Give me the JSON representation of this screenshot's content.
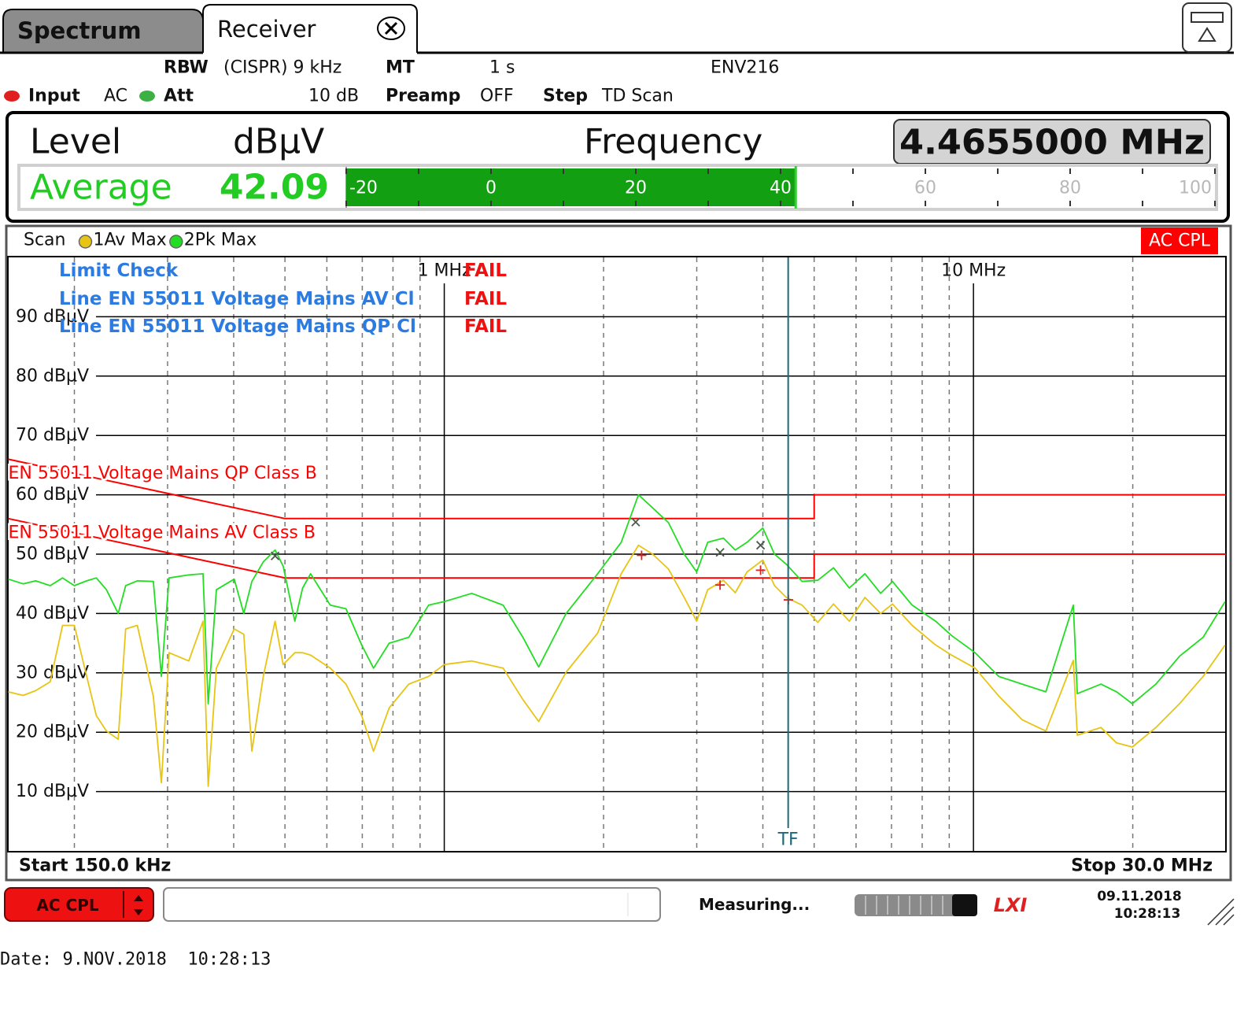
{
  "tabs": [
    "Spectrum",
    "Receiver"
  ],
  "settings": {
    "rbw_label": "RBW",
    "rbw_value": "(CISPR) 9 kHz",
    "mt_label": "MT",
    "mt_value": "1 s",
    "device": "ENV216",
    "input_label": "Input",
    "input_value": "AC",
    "att_label": "Att",
    "att_value": "10 dB",
    "preamp_label": "Preamp",
    "preamp_value": "OFF",
    "step_label": "Step",
    "step_value": "TD Scan"
  },
  "level_panel": {
    "level_label": "Level",
    "unit": "dBµV",
    "frequency_label": "Frequency",
    "frequency_value": "4.4655000 MHz",
    "detector": "Average",
    "value": 42.09,
    "meter_lim": [
      -20,
      100
    ],
    "meter_ticks": [
      -20,
      0,
      20,
      40,
      60,
      80,
      100
    ],
    "meter_minor_ticks": [
      -10,
      10,
      30,
      50,
      70,
      90
    ]
  },
  "chart_data": {
    "type": "line",
    "scan_label": "Scan",
    "coupling": "AC CPL",
    "xscale": "log",
    "grid": true,
    "xlim": [
      0.15,
      30
    ],
    "xticks": [
      {
        "value": 1,
        "label": "1 MHz"
      },
      {
        "value": 10,
        "label": "10 MHz"
      }
    ],
    "xminorticks": [
      0.2,
      0.3,
      0.4,
      0.5,
      0.6,
      0.7,
      0.8,
      0.9,
      2,
      3,
      4,
      5,
      6,
      7,
      8,
      9,
      20
    ],
    "ylim": [
      0,
      100
    ],
    "yticks": [
      {
        "value": 10,
        "label": "10 dBµV"
      },
      {
        "value": 20,
        "label": "20 dBµV"
      },
      {
        "value": 30,
        "label": "30 dBµV"
      },
      {
        "value": 40,
        "label": "40 dBµV"
      },
      {
        "value": 50,
        "label": "50 dBµV"
      },
      {
        "value": 60,
        "label": "60 dBµV"
      },
      {
        "value": 70,
        "label": "70 dBµV"
      },
      {
        "value": 80,
        "label": "80 dBµV"
      },
      {
        "value": 90,
        "label": "90 dBµV"
      }
    ],
    "start_label": "Start 150.0 kHz",
    "stop_label": "Stop 30.0 MHz",
    "limit_check": {
      "title": "Limit Check",
      "result": "FAIL",
      "lines": [
        {
          "label": "Line EN 55011 Voltage Mains AV Cl",
          "result": "FAIL"
        },
        {
          "label": "Line EN 55011 Voltage Mains QP Cl",
          "result": "FAIL"
        }
      ]
    },
    "x": [
      0.15,
      0.16,
      0.169,
      0.18,
      0.19,
      0.2,
      0.211,
      0.22,
      0.23,
      0.242,
      0.25,
      0.263,
      0.282,
      0.292,
      0.302,
      0.329,
      0.35,
      0.358,
      0.371,
      0.401,
      0.418,
      0.433,
      0.455,
      0.479,
      0.496,
      0.522,
      0.54,
      0.559,
      0.609,
      0.652,
      0.698,
      0.735,
      0.787,
      0.857,
      0.934,
      1,
      1.127,
      1.292,
      1.408,
      1.508,
      1.699,
      1.949,
      2.16,
      2.328,
      2.476,
      2.652,
      2.84,
      2.999,
      3.147,
      3.37,
      3.547,
      3.734,
      3.998,
      4.208,
      4.43,
      4.745,
      5.08,
      5.439,
      5.825,
      6.236,
      6.679,
      7.031,
      7.658,
      8.485,
      9.088,
      10.07,
      11.16,
      12.36,
      13.7,
      15.44,
      15.71,
      17.41,
      18.64,
      19.96,
      22.12,
      24.51,
      27.16,
      29.89
    ],
    "series": [
      {
        "name": "1Av Max",
        "color": "#e8c414",
        "values": [
          26.8,
          26.2,
          27,
          28.5,
          38,
          38,
          29.4,
          22.8,
          20.2,
          18.8,
          37.4,
          38,
          26,
          11.5,
          33.4,
          32,
          38.7,
          10.9,
          30.8,
          37.4,
          36.5,
          16.8,
          29.4,
          38.7,
          31.4,
          33.4,
          33.4,
          33,
          30.8,
          28.1,
          22.8,
          16.8,
          24.1,
          28.1,
          29.4,
          31.4,
          32,
          30.8,
          25.5,
          21.8,
          30.1,
          36.7,
          46.7,
          51.5,
          50,
          47.5,
          42.7,
          38.7,
          44,
          45.6,
          43.5,
          47,
          49,
          44.7,
          42.7,
          41.4,
          38.5,
          41.6,
          38.7,
          42.7,
          40,
          41.6,
          38,
          34.7,
          33,
          30.8,
          26.1,
          22.1,
          20.2,
          32.1,
          19.5,
          20.8,
          18.2,
          17.5,
          20.8,
          24.8,
          29.4,
          34.7
        ]
      },
      {
        "name": "2Pk Max",
        "color": "#22dd22",
        "values": [
          45.8,
          45,
          45.5,
          44.7,
          46,
          44.7,
          45.5,
          46,
          44,
          40,
          44.7,
          45.5,
          45.4,
          29.4,
          46,
          46.5,
          46.7,
          24.8,
          44,
          45.8,
          40,
          45.4,
          48.7,
          50.7,
          48,
          38.7,
          44.3,
          46.7,
          41.4,
          40.8,
          34.7,
          30.8,
          35,
          36,
          41.4,
          42,
          43.4,
          41.4,
          36,
          31,
          40,
          46.7,
          52,
          60,
          57.8,
          55.3,
          50,
          47,
          52,
          52.7,
          50.7,
          52,
          54.4,
          50,
          48.3,
          45.4,
          45.6,
          47.7,
          44.3,
          46.7,
          43.4,
          45.4,
          41.4,
          38.7,
          36.3,
          33.4,
          29.4,
          28.1,
          26.8,
          41.4,
          26.5,
          28.1,
          26.8,
          24.8,
          28.1,
          32.8,
          36,
          42
        ]
      }
    ],
    "limit_lines": [
      {
        "name": "EN 55011 Voltage Mains QP Class B",
        "color": "#ff0000",
        "x": [
          0.15,
          0.5,
          5,
          5,
          30
        ],
        "values": [
          66,
          56,
          56,
          60,
          60
        ]
      },
      {
        "name": "EN 55011 Voltage Mains AV Class B",
        "color": "#ff0000",
        "x": [
          0.15,
          0.5,
          5,
          5,
          30
        ],
        "values": [
          56,
          46,
          46,
          50,
          50
        ]
      }
    ],
    "pk_peaks": {
      "color": "#4a5a4a",
      "x": [
        0.479,
        2.3,
        3.32,
        3.96
      ],
      "values": [
        49.7,
        55.4,
        50.3,
        51.5
      ]
    },
    "av_peaks": {
      "color": "#e02020",
      "x": [
        2.36,
        3.32,
        3.96,
        4.47
      ],
      "values": [
        49.8,
        44.8,
        47.3,
        42.3
      ]
    },
    "tf_marker": {
      "x": 4.4655,
      "label": "TF",
      "color": "#1a6a7a"
    }
  },
  "status_bar": {
    "coupling_button": "AC CPL",
    "status": "Measuring...",
    "logo": "LXI",
    "date": "09.11.2018",
    "time": "10:28:13"
  },
  "footer": "Date: 9.NOV.2018  10:28:13"
}
